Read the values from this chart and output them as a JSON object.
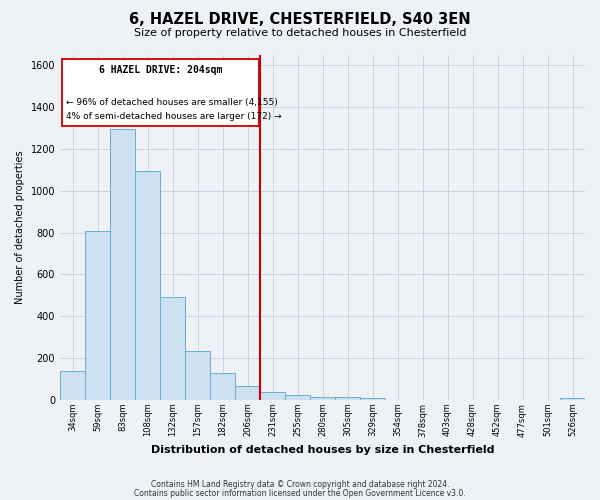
{
  "title": "6, HAZEL DRIVE, CHESTERFIELD, S40 3EN",
  "subtitle": "Size of property relative to detached houses in Chesterfield",
  "xlabel": "Distribution of detached houses by size in Chesterfield",
  "ylabel": "Number of detached properties",
  "bar_labels": [
    "34sqm",
    "59sqm",
    "83sqm",
    "108sqm",
    "132sqm",
    "157sqm",
    "182sqm",
    "206sqm",
    "231sqm",
    "255sqm",
    "280sqm",
    "305sqm",
    "329sqm",
    "354sqm",
    "378sqm",
    "403sqm",
    "428sqm",
    "452sqm",
    "477sqm",
    "501sqm",
    "526sqm"
  ],
  "bar_heights": [
    140,
    810,
    1295,
    1095,
    490,
    235,
    130,
    65,
    40,
    25,
    15,
    12,
    8,
    0,
    0,
    0,
    0,
    0,
    0,
    0,
    8
  ],
  "bar_color": "#cce0f0",
  "bar_edge_color": "#6aafd6",
  "vline_bar_index": 7,
  "property_line_label": "6 HAZEL DRIVE: 204sqm",
  "annotation_line1": "← 96% of detached houses are smaller (4,155)",
  "annotation_line2": "4% of semi-detached houses are larger (172) →",
  "vline_color": "#cc0000",
  "ylim": [
    0,
    1650
  ],
  "yticks": [
    0,
    200,
    400,
    600,
    800,
    1000,
    1200,
    1400,
    1600
  ],
  "footnote1": "Contains HM Land Registry data © Crown copyright and database right 2024.",
  "footnote2": "Contains public sector information licensed under the Open Government Licence v3.0.",
  "bg_color": "#eef2f7",
  "plot_bg_color": "#eef2f7",
  "grid_color": "#c8d4e0"
}
